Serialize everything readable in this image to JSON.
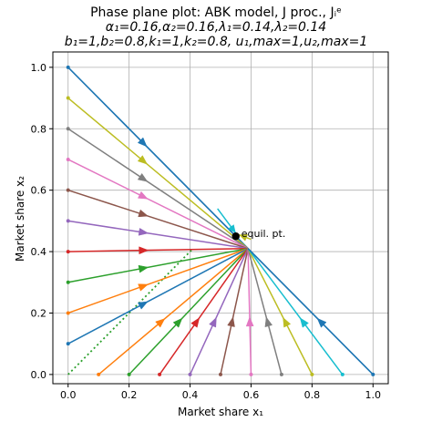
{
  "chart_data": {
    "type": "line",
    "title_lines": [
      "Phase plane plot: ABK model, J proc., Jᵢᵉ",
      "α₁=0.16,α₂=0.16,λ₁=0.14,λ₂=0.14",
      "b₁=1,b₂=0.8,k₁=1,k₂=0.8, u₁,max=1,u₂,max=1"
    ],
    "xlabel": "Market share x₁",
    "ylabel": "Market share x₂",
    "xlim": [
      -0.05,
      1.05
    ],
    "ylim": [
      -0.03,
      1.05
    ],
    "xticks": [
      "0.0",
      "0.2",
      "0.4",
      "0.6",
      "0.8",
      "1.0"
    ],
    "yticks": [
      "0.0",
      "0.2",
      "0.4",
      "0.6",
      "0.8",
      "1.0"
    ],
    "grid": true,
    "equilibrium": {
      "x": 0.55,
      "y": 0.45,
      "label": "equil. pt."
    },
    "boundary_line": {
      "x": [
        0,
        1
      ],
      "y": [
        1,
        0
      ],
      "color": "#1f77b4"
    },
    "diagonal_line": {
      "x": [
        0,
        0.41
      ],
      "y": [
        0,
        0.41
      ],
      "style": "dotted",
      "color": "#2ca02c"
    },
    "trajectories_left": [
      {
        "start": [
          0,
          1.0
        ],
        "end": [
          0.59,
          0.41
        ],
        "color": "#1f77b4"
      },
      {
        "start": [
          0,
          0.9
        ],
        "end": [
          0.59,
          0.41
        ],
        "color": "#bcbd22"
      },
      {
        "start": [
          0,
          0.8
        ],
        "end": [
          0.59,
          0.41
        ],
        "color": "#7f7f7f"
      },
      {
        "start": [
          0,
          0.7
        ],
        "end": [
          0.59,
          0.41
        ],
        "color": "#e377c2"
      },
      {
        "start": [
          0,
          0.6
        ],
        "end": [
          0.59,
          0.41
        ],
        "color": "#8c564b"
      },
      {
        "start": [
          0,
          0.5
        ],
        "end": [
          0.59,
          0.41
        ],
        "color": "#9467bd"
      },
      {
        "start": [
          0,
          0.4
        ],
        "end": [
          0.59,
          0.41
        ],
        "color": "#d62728"
      },
      {
        "start": [
          0,
          0.3
        ],
        "end": [
          0.59,
          0.41
        ],
        "color": "#2ca02c"
      },
      {
        "start": [
          0,
          0.2
        ],
        "end": [
          0.59,
          0.41
        ],
        "color": "#ff7f0e"
      },
      {
        "start": [
          0,
          0.1
        ],
        "end": [
          0.59,
          0.41
        ],
        "color": "#1f77b4"
      }
    ],
    "trajectories_bottom": [
      {
        "start": [
          0.1,
          0
        ],
        "end": [
          0.59,
          0.41
        ],
        "color": "#ff7f0e"
      },
      {
        "start": [
          0.2,
          0
        ],
        "end": [
          0.59,
          0.41
        ],
        "color": "#2ca02c"
      },
      {
        "start": [
          0.3,
          0
        ],
        "end": [
          0.59,
          0.41
        ],
        "color": "#d62728"
      },
      {
        "start": [
          0.4,
          0
        ],
        "end": [
          0.59,
          0.41
        ],
        "color": "#9467bd"
      },
      {
        "start": [
          0.5,
          0
        ],
        "end": [
          0.59,
          0.41
        ],
        "color": "#8c564b"
      },
      {
        "start": [
          0.6,
          0
        ],
        "end": [
          0.59,
          0.41
        ],
        "color": "#e377c2"
      },
      {
        "start": [
          0.7,
          0
        ],
        "end": [
          0.59,
          0.41
        ],
        "color": "#7f7f7f"
      },
      {
        "start": [
          0.8,
          0
        ],
        "end": [
          0.59,
          0.41
        ],
        "color": "#bcbd22"
      },
      {
        "start": [
          0.9,
          0
        ],
        "end": [
          0.59,
          0.41
        ],
        "color": "#17becf"
      },
      {
        "start": [
          1.0,
          0
        ],
        "end": [
          0.59,
          0.41
        ],
        "color": "#1f77b4"
      }
    ],
    "trajectories_upper_right": [
      {
        "start": [
          0.49,
          0.54
        ],
        "end": [
          0.55,
          0.46
        ],
        "color": "#17becf"
      },
      {
        "start": [
          0.6,
          0.44
        ],
        "end": [
          0.56,
          0.455
        ],
        "color": "#bcbd22"
      }
    ]
  }
}
